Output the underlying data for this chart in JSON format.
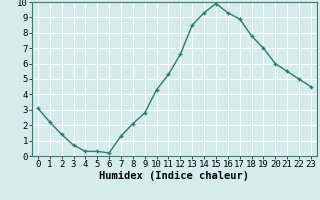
{
  "x": [
    0,
    1,
    2,
    3,
    4,
    5,
    6,
    7,
    8,
    9,
    10,
    11,
    12,
    13,
    14,
    15,
    16,
    17,
    18,
    19,
    20,
    21,
    22,
    23
  ],
  "y": [
    3.1,
    2.2,
    1.4,
    0.7,
    0.3,
    0.3,
    0.2,
    1.3,
    2.1,
    2.8,
    4.3,
    5.3,
    6.6,
    8.5,
    9.3,
    9.9,
    9.3,
    8.9,
    7.8,
    7.0,
    6.0,
    5.5,
    5.0,
    4.5
  ],
  "line_color": "#2e7d6e",
  "marker": "+",
  "marker_size": 3,
  "linewidth": 1.0,
  "xlabel": "Humidex (Indice chaleur)",
  "xlim": [
    -0.5,
    23.5
  ],
  "ylim": [
    0,
    10
  ],
  "xticks": [
    0,
    1,
    2,
    3,
    4,
    5,
    6,
    7,
    8,
    9,
    10,
    11,
    12,
    13,
    14,
    15,
    16,
    17,
    18,
    19,
    20,
    21,
    22,
    23
  ],
  "yticks": [
    0,
    1,
    2,
    3,
    4,
    5,
    6,
    7,
    8,
    9,
    10
  ],
  "background_color": "#d4edec",
  "grid_color": "#ffffff",
  "tick_label_fontsize": 6.5,
  "xlabel_fontsize": 7.5,
  "spine_color": "#3d7a72"
}
